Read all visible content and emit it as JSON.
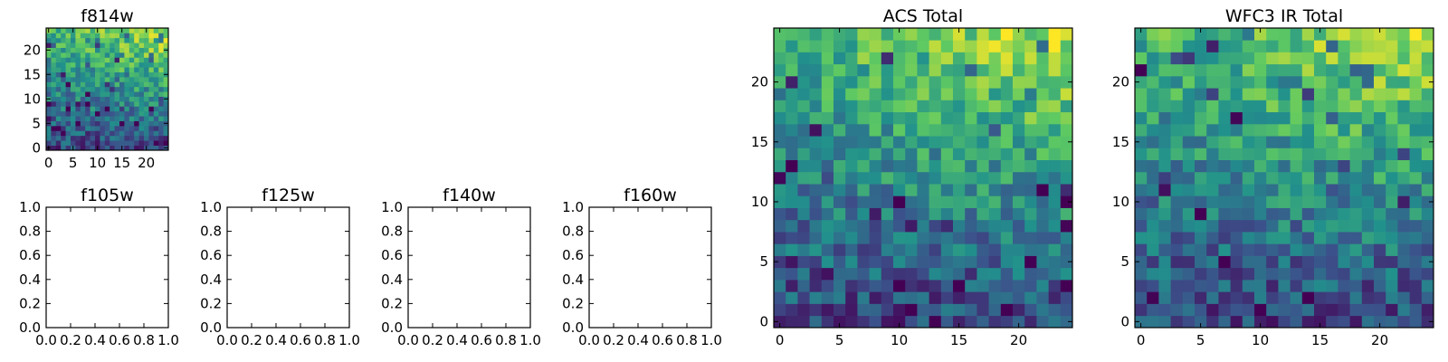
{
  "colormap": [
    "#440154",
    "#3b528b",
    "#21918c",
    "#5ec962",
    "#fde725"
  ],
  "chart_data": [
    {
      "id": "f814w",
      "type": "heatmap",
      "title": "f814w",
      "grid_size": 25,
      "value_range": [
        0,
        1
      ],
      "x_range": [
        -0.5,
        24.5
      ],
      "y_range": [
        -0.5,
        24.5
      ],
      "x_ticks": [
        0,
        5,
        10,
        15,
        20
      ],
      "y_ticks": [
        0,
        5,
        10,
        15,
        20
      ],
      "seed": 814,
      "z": []
    },
    {
      "id": "f105w",
      "type": "empty",
      "title": "f105w",
      "x_range": [
        0,
        1
      ],
      "y_range": [
        0,
        1
      ],
      "x_ticks": [
        "0.0",
        "0.2",
        "0.4",
        "0.6",
        "0.8",
        "1.0"
      ],
      "y_ticks": [
        "0.0",
        "0.2",
        "0.4",
        "0.6",
        "0.8",
        "1.0"
      ]
    },
    {
      "id": "f125w",
      "type": "empty",
      "title": "f125w",
      "x_range": [
        0,
        1
      ],
      "y_range": [
        0,
        1
      ],
      "x_ticks": [
        "0.0",
        "0.2",
        "0.4",
        "0.6",
        "0.8",
        "1.0"
      ],
      "y_ticks": [
        "0.0",
        "0.2",
        "0.4",
        "0.6",
        "0.8",
        "1.0"
      ]
    },
    {
      "id": "f140w",
      "type": "empty",
      "title": "f140w",
      "x_range": [
        0,
        1
      ],
      "y_range": [
        0,
        1
      ],
      "x_ticks": [
        "0.0",
        "0.2",
        "0.4",
        "0.6",
        "0.8",
        "1.0"
      ],
      "y_ticks": [
        "0.0",
        "0.2",
        "0.4",
        "0.6",
        "0.8",
        "1.0"
      ]
    },
    {
      "id": "f160w",
      "type": "empty",
      "title": "f160w",
      "x_range": [
        0,
        1
      ],
      "y_range": [
        0,
        1
      ],
      "x_ticks": [
        "0.0",
        "0.2",
        "0.4",
        "0.6",
        "0.8",
        "1.0"
      ],
      "y_ticks": [
        "0.0",
        "0.2",
        "0.4",
        "0.6",
        "0.8",
        "1.0"
      ]
    },
    {
      "id": "acs-total",
      "type": "heatmap",
      "title": "ACS Total",
      "grid_size": 25,
      "value_range": [
        0,
        1
      ],
      "x_range": [
        -0.5,
        24.5
      ],
      "y_range": [
        -0.5,
        24.5
      ],
      "x_ticks": [
        0,
        5,
        10,
        15,
        20
      ],
      "y_ticks": [
        0,
        5,
        10,
        15,
        20
      ],
      "seed": 815,
      "z": []
    },
    {
      "id": "wfc3-ir-total",
      "type": "heatmap",
      "title": "WFC3 IR Total",
      "grid_size": 25,
      "value_range": [
        0,
        1
      ],
      "x_range": [
        -0.5,
        24.5
      ],
      "y_range": [
        -0.5,
        24.5
      ],
      "x_ticks": [
        0,
        5,
        10,
        15,
        20
      ],
      "y_ticks": [
        0,
        5,
        10,
        15,
        20
      ],
      "seed": 160,
      "z": []
    }
  ]
}
